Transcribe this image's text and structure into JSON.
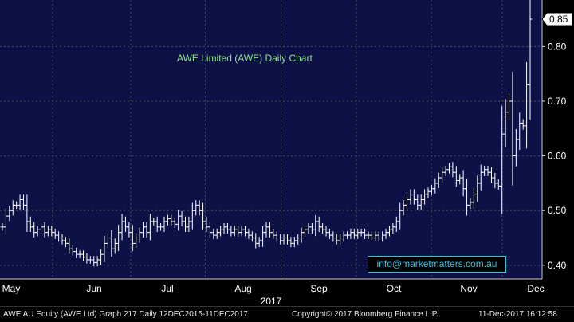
{
  "chart_data": {
    "type": "ohlc",
    "title": "AWE Limited (AWE) Daily Chart",
    "year_label": "2017",
    "months": [
      "May",
      "Jun",
      "Jul",
      "Aug",
      "Sep",
      "Oct",
      "Nov",
      "Dec"
    ],
    "yticks": [
      "0.40",
      "0.50",
      "0.60",
      "0.70",
      "0.80"
    ],
    "ylim": [
      0.375,
      0.885
    ],
    "last_price": "0.85",
    "grid": true,
    "colors": {
      "background": "#0d1146",
      "bars": "#ffffff",
      "grid": "#505050",
      "title": "#8fe08f",
      "watermark": "#34c3dc"
    },
    "closes": [
      0.47,
      0.49,
      0.5,
      0.51,
      0.51,
      0.52,
      0.51,
      0.48,
      0.47,
      0.46,
      0.465,
      0.47,
      0.46,
      0.465,
      0.46,
      0.455,
      0.45,
      0.445,
      0.44,
      0.43,
      0.425,
      0.42,
      0.42,
      0.415,
      0.41,
      0.41,
      0.405,
      0.41,
      0.42,
      0.44,
      0.45,
      0.43,
      0.44,
      0.46,
      0.48,
      0.47,
      0.46,
      0.44,
      0.45,
      0.46,
      0.47,
      0.46,
      0.48,
      0.48,
      0.47,
      0.47,
      0.48,
      0.485,
      0.48,
      0.475,
      0.49,
      0.48,
      0.47,
      0.48,
      0.5,
      0.51,
      0.5,
      0.48,
      0.47,
      0.46,
      0.455,
      0.46,
      0.465,
      0.47,
      0.465,
      0.46,
      0.465,
      0.46,
      0.465,
      0.46,
      0.455,
      0.45,
      0.44,
      0.445,
      0.46,
      0.47,
      0.46,
      0.455,
      0.45,
      0.445,
      0.45,
      0.445,
      0.44,
      0.445,
      0.45,
      0.46,
      0.465,
      0.47,
      0.465,
      0.48,
      0.47,
      0.465,
      0.46,
      0.455,
      0.45,
      0.445,
      0.45,
      0.455,
      0.455,
      0.46,
      0.455,
      0.46,
      0.46,
      0.455,
      0.455,
      0.45,
      0.455,
      0.45,
      0.455,
      0.46,
      0.465,
      0.47,
      0.48,
      0.5,
      0.51,
      0.52,
      0.53,
      0.52,
      0.51,
      0.52,
      0.53,
      0.535,
      0.54,
      0.55,
      0.56,
      0.57,
      0.575,
      0.58,
      0.57,
      0.555,
      0.56,
      0.54,
      0.51,
      0.515,
      0.53,
      0.55,
      0.57,
      0.575,
      0.57,
      0.56,
      0.55,
      0.545,
      0.64,
      0.68,
      0.7,
      0.6,
      0.63,
      0.66,
      0.655,
      0.73,
      0.85
    ]
  },
  "watermark": "info@marketmatters.com.au",
  "footer": {
    "security": "AWE AU Equity (AWE Ltd) Graph 217  Daily 12DEC2015-11DEC2017",
    "copyright": "Copyright© 2017 Bloomberg Finance L.P.",
    "timestamp": "11-Dec-2017  16:12:58"
  }
}
